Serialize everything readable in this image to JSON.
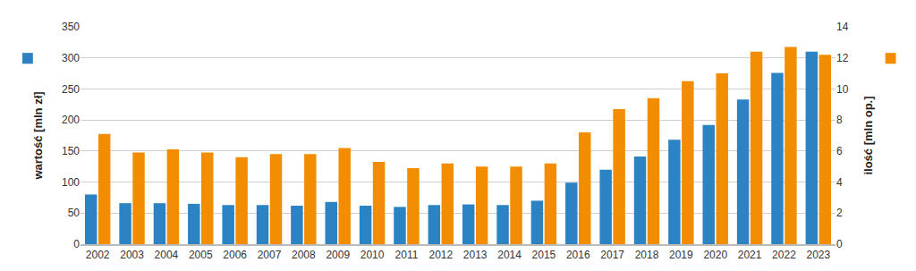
{
  "chart_data": {
    "type": "bar",
    "y_label": "wartość [mln zł]",
    "y2_label": "ilość [mln op.]",
    "categories": [
      "2002",
      "2003",
      "2004",
      "2005",
      "2006",
      "2007",
      "2008",
      "2009",
      "2010",
      "2011",
      "2012",
      "2013",
      "2014",
      "2015",
      "2016",
      "2017",
      "2018",
      "2019",
      "2020",
      "2021",
      "2022",
      "2023"
    ],
    "series": [
      {
        "name": "wartość [mln zł]",
        "color": "#2b83c4",
        "values": [
          80,
          66,
          66,
          65,
          63,
          63,
          62,
          68,
          62,
          60,
          63,
          64,
          63,
          70,
          99,
          120,
          141,
          168,
          192,
          233,
          276,
          310
        ]
      },
      {
        "name": "ilość [mln op.]",
        "color": "#f28c00",
        "axis": "y2",
        "values": [
          7.1,
          5.9,
          6.1,
          5.9,
          5.6,
          5.8,
          5.8,
          6.2,
          5.3,
          4.9,
          5.2,
          5.0,
          5.0,
          5.2,
          7.2,
          8.7,
          9.4,
          10.5,
          11.0,
          12.4,
          12.7,
          12.2
        ]
      }
    ],
    "ylim": [
      0,
      350
    ],
    "yticks": [
      0,
      50,
      100,
      150,
      200,
      250,
      300,
      350
    ],
    "y2lim": [
      0,
      14
    ],
    "y2ticks": [
      0,
      2,
      4,
      6,
      8,
      10,
      12,
      14
    ],
    "grid": true
  }
}
